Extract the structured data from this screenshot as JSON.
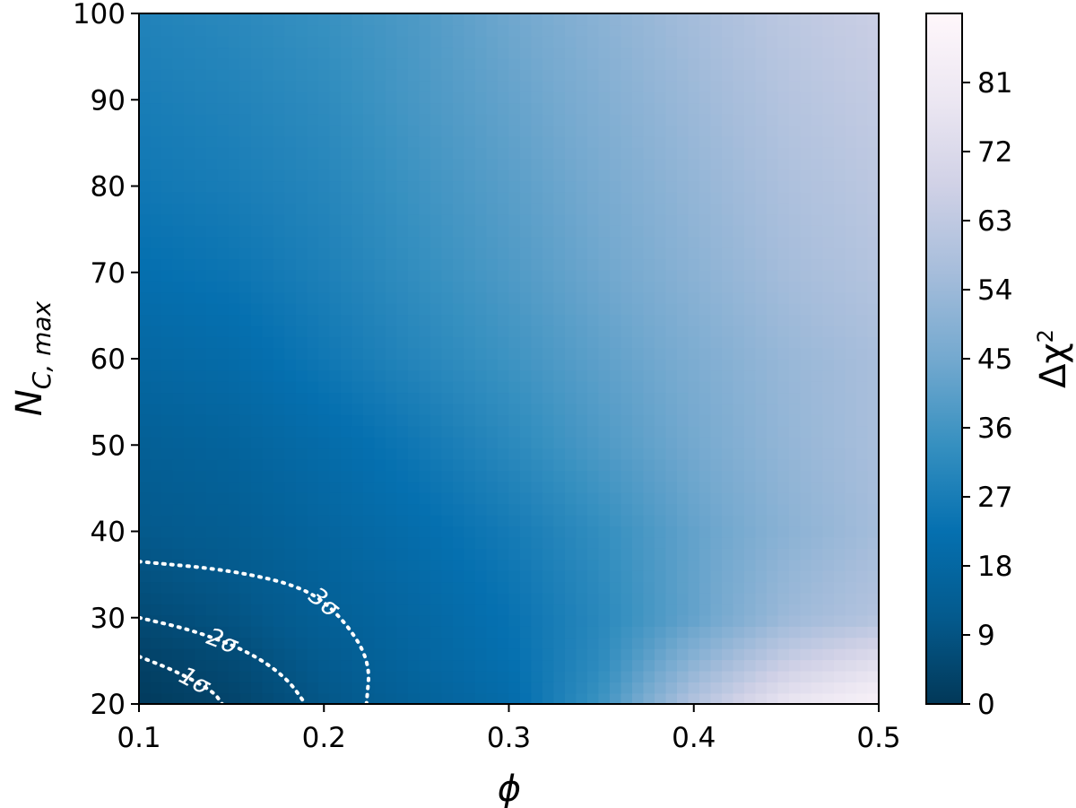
{
  "chart_data": {
    "type": "heatmap",
    "xlabel": "ϕ",
    "ylabel_main": "N",
    "ylabel_sub": "C, max",
    "colorbar_label_main": "Δχ",
    "colorbar_label_sup": "2",
    "xlim": [
      0.1,
      0.5
    ],
    "ylim": [
      20,
      100
    ],
    "x_ticks": [
      0.1,
      0.2,
      0.3,
      0.4,
      0.5
    ],
    "x_tick_labels": [
      "0.1",
      "0.2",
      "0.3",
      "0.4",
      "0.5"
    ],
    "y_ticks": [
      20,
      30,
      40,
      50,
      60,
      70,
      80,
      90,
      100
    ],
    "y_tick_labels": [
      "20",
      "30",
      "40",
      "50",
      "60",
      "70",
      "80",
      "90",
      "100"
    ],
    "colorbar_range": [
      0,
      90
    ],
    "colorbar_ticks": [
      0,
      9,
      18,
      27,
      36,
      45,
      54,
      63,
      72,
      81
    ],
    "colorbar_tick_labels": [
      "0",
      "9",
      "18",
      "27",
      "36",
      "45",
      "54",
      "63",
      "72",
      "81"
    ],
    "colormap": [
      "#023858",
      "#045a8d",
      "#0570b0",
      "#3690c0",
      "#74a9cf",
      "#a6bddb",
      "#d0d1e6",
      "#ece7f2",
      "#fff7fb"
    ],
    "grid": {
      "x": [
        0.1,
        0.15,
        0.2,
        0.25,
        0.3,
        0.35,
        0.4,
        0.45,
        0.5
      ],
      "y": [
        20,
        25,
        30,
        40,
        50,
        60,
        70,
        80,
        90,
        100
      ],
      "z": [
        [
          1,
          4,
          10,
          15,
          20,
          35,
          60,
          78,
          86
        ],
        [
          3,
          6,
          12,
          17,
          22,
          32,
          50,
          65,
          74
        ],
        [
          6,
          9,
          14,
          18,
          23,
          31,
          42,
          54,
          60
        ],
        [
          11,
          13,
          17,
          21,
          26,
          33,
          42,
          50,
          56
        ],
        [
          14,
          16,
          20,
          25,
          31,
          38,
          45,
          52,
          57
        ],
        [
          18,
          20,
          25,
          30,
          35,
          41,
          47,
          53,
          57
        ],
        [
          22,
          24,
          28,
          33,
          38,
          44,
          50,
          56,
          60
        ],
        [
          25,
          27,
          30,
          35,
          40,
          46,
          52,
          58,
          62
        ],
        [
          27,
          29,
          32,
          37,
          42,
          48,
          54,
          60,
          64
        ],
        [
          29,
          31,
          34,
          38,
          44,
          50,
          56,
          62,
          66
        ]
      ]
    },
    "contours": [
      {
        "label": "1σ",
        "points": [
          [
            0.1,
            25.5
          ],
          [
            0.12,
            23.8
          ],
          [
            0.14,
            21.5
          ],
          [
            0.145,
            20
          ]
        ]
      },
      {
        "label": "2σ",
        "points": [
          [
            0.1,
            30
          ],
          [
            0.13,
            28.5
          ],
          [
            0.16,
            26.0
          ],
          [
            0.18,
            23.0
          ],
          [
            0.19,
            20
          ]
        ]
      },
      {
        "label": "3σ",
        "points": [
          [
            0.1,
            36.5
          ],
          [
            0.15,
            35.5
          ],
          [
            0.19,
            33.5
          ],
          [
            0.21,
            30.0
          ],
          [
            0.225,
            25.0
          ],
          [
            0.223,
            20
          ]
        ]
      }
    ]
  }
}
